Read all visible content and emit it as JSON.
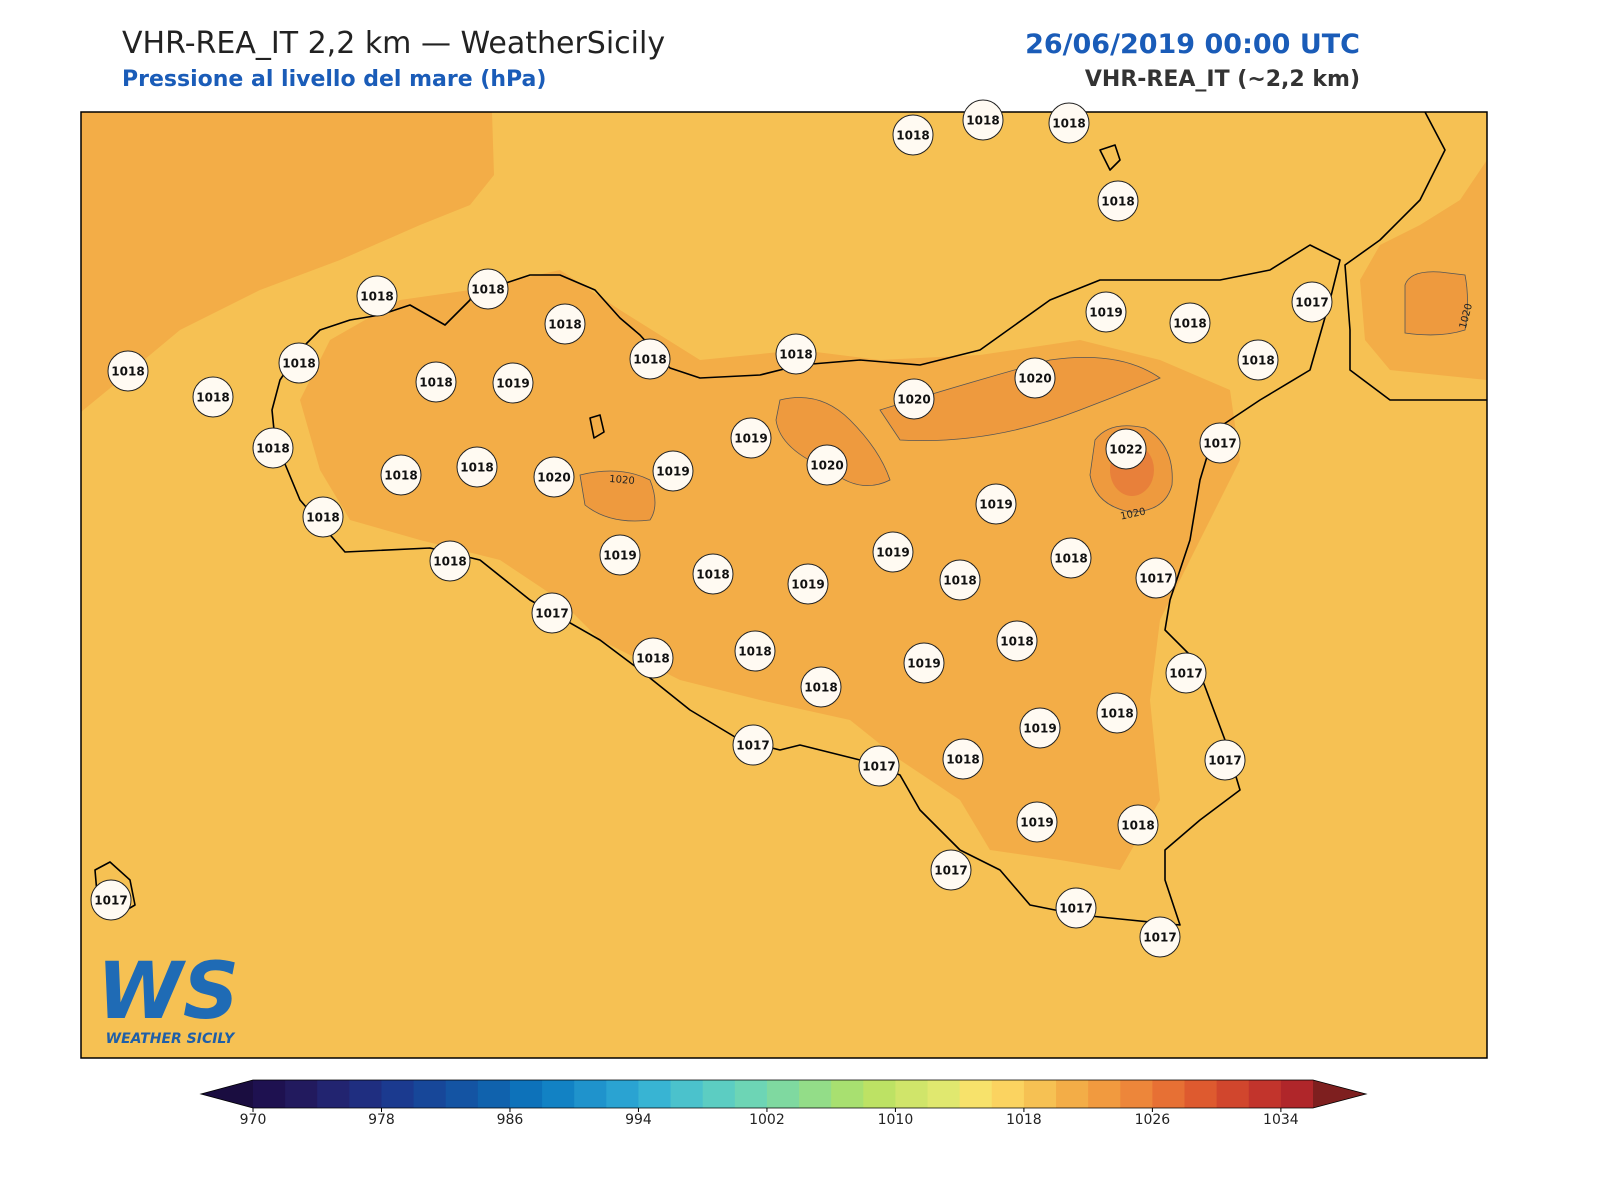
{
  "header": {
    "title": "VHR-REA_IT 2,2 km — WeatherSicily",
    "subtitle": "Pressione al livello del mare (hPa)",
    "date": "26/06/2019 00:00 UTC",
    "model": "VHR-REA_IT (~2,2 km)"
  },
  "stations": [
    1018,
    1018,
    1018,
    1018,
    1018,
    1018,
    1018,
    1018,
    1018,
    1019,
    1018,
    1017,
    1018,
    1018,
    1018,
    1018,
    1018,
    1019,
    1020,
    1020,
    1019,
    1022,
    1017,
    1018,
    1018,
    1018,
    1020,
    1019,
    1020,
    1019,
    1018,
    1018,
    1019,
    1018,
    1019,
    1019,
    1018,
    1018,
    1017,
    1017,
    1018,
    1018,
    1018,
    1019,
    1018,
    1017,
    1019,
    1018,
    1017,
    1017,
    1018,
    1017,
    1019,
    1018,
    1017,
    1017,
    1017,
    1017
  ],
  "contour_labels": [
    1020,
    1020,
    1020
  ],
  "colorbar": {
    "lim": [
      970,
      1036
    ],
    "ticks": [
      970,
      978,
      986,
      994,
      1002,
      1010,
      1018,
      1026,
      1034
    ],
    "colors": [
      "#1e1150",
      "#221a5e",
      "#222470",
      "#1f2e80",
      "#1b3a8f",
      "#174799",
      "#1454a3",
      "#1062ad",
      "#0d72ba",
      "#1282c4",
      "#1f93cc",
      "#2aa3d2",
      "#38b4d3",
      "#4bc2cc",
      "#5ccdc2",
      "#6dd5b5",
      "#7fd9a0",
      "#93dd88",
      "#a8e070",
      "#bde264",
      "#d0e56a",
      "#e0e86f",
      "#f7e26b",
      "#fbd360",
      "#f6c153",
      "#f3ad47",
      "#f19a3f",
      "#ed863a",
      "#e77034",
      "#de5a2f",
      "#d1462d",
      "#c2342c",
      "#b0262a"
    ],
    "extend_colors": [
      "#1a0d40",
      "#7e1f1f"
    ]
  },
  "logo": {
    "mark": "WS",
    "name": "WEATHER SICILY"
  }
}
